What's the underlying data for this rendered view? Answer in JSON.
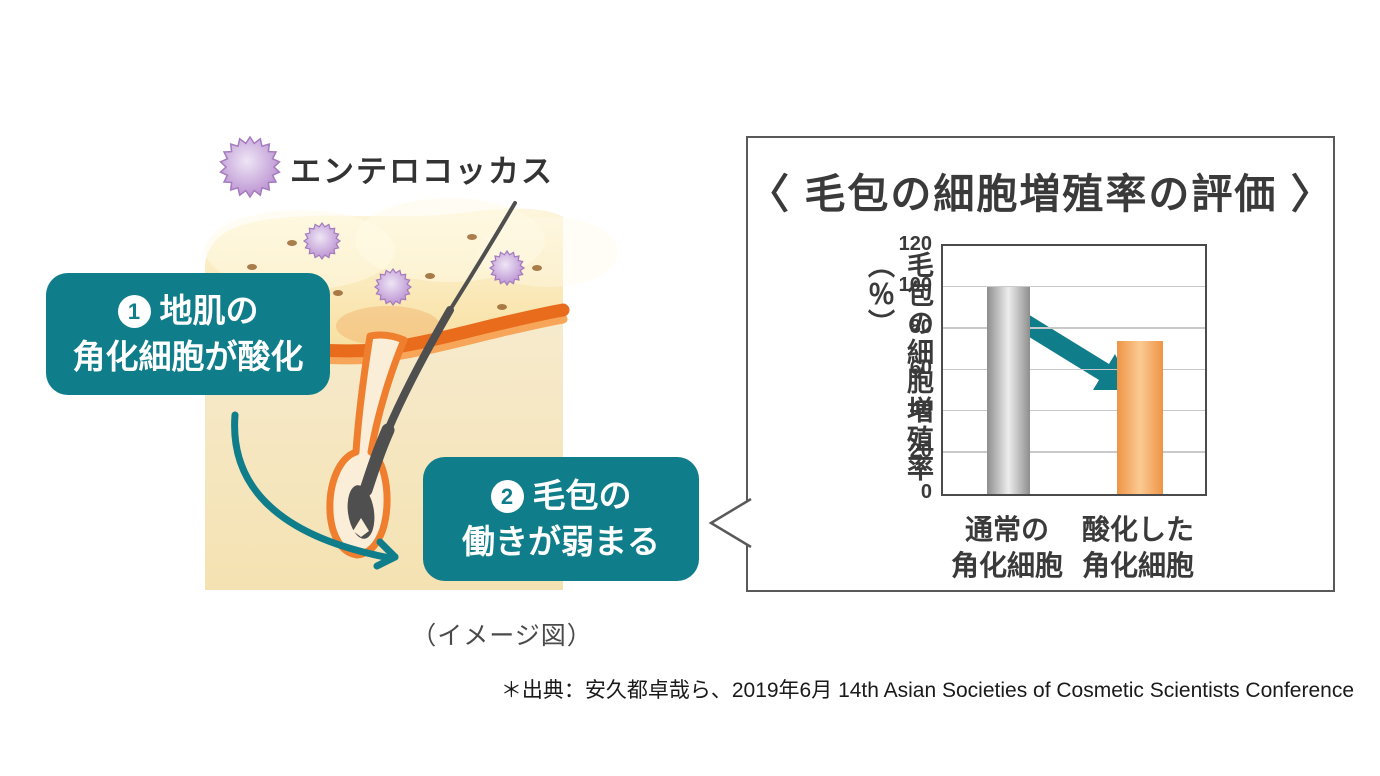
{
  "illustration": {
    "label": "エンテロコッカス",
    "caption": "（イメージ図）",
    "steps": [
      {
        "num": "1",
        "line1": "地肌の",
        "line2": "角化細胞が酸化"
      },
      {
        "num": "2",
        "line1": "毛包の",
        "line2": "働きが弱まる"
      }
    ],
    "microbe_color": "#b78bce",
    "arrow_color": "#0f7d8a"
  },
  "panel": {
    "title": "〈 毛包の細胞増殖率の評価 〉"
  },
  "chart_data": {
    "type": "bar",
    "title": "毛包の細胞増殖率の評価",
    "ylabel": "毛包の細胞増殖率（％）",
    "ylim": [
      0,
      120
    ],
    "yticks": [
      0,
      20,
      40,
      60,
      80,
      100,
      120
    ],
    "grid": true,
    "legend_position": "none",
    "categories": [
      "通常の角化細胞",
      "酸化した角化細胞"
    ],
    "category_lines": [
      [
        "通常の",
        "角化細胞"
      ],
      [
        "酸化した",
        "角化細胞"
      ]
    ],
    "values": [
      100,
      74
    ],
    "bars": [
      {
        "label": "通常の角化細胞",
        "value": 100,
        "color_edge": "#8e8e8e",
        "color_mid": "#ededed"
      },
      {
        "label": "酸化した角化細胞",
        "value": 74,
        "color_edge": "#ee9446",
        "color_mid": "#fbca92"
      }
    ],
    "annotation": {
      "type": "decrease-arrow",
      "color": "#0f7d8a",
      "from_value": 100,
      "to_value": 74
    }
  },
  "footer": {
    "source": "＊出典：安久都卓哉ら、2019年6月 14th Asian Societies of Cosmetic Scientists Conference"
  }
}
